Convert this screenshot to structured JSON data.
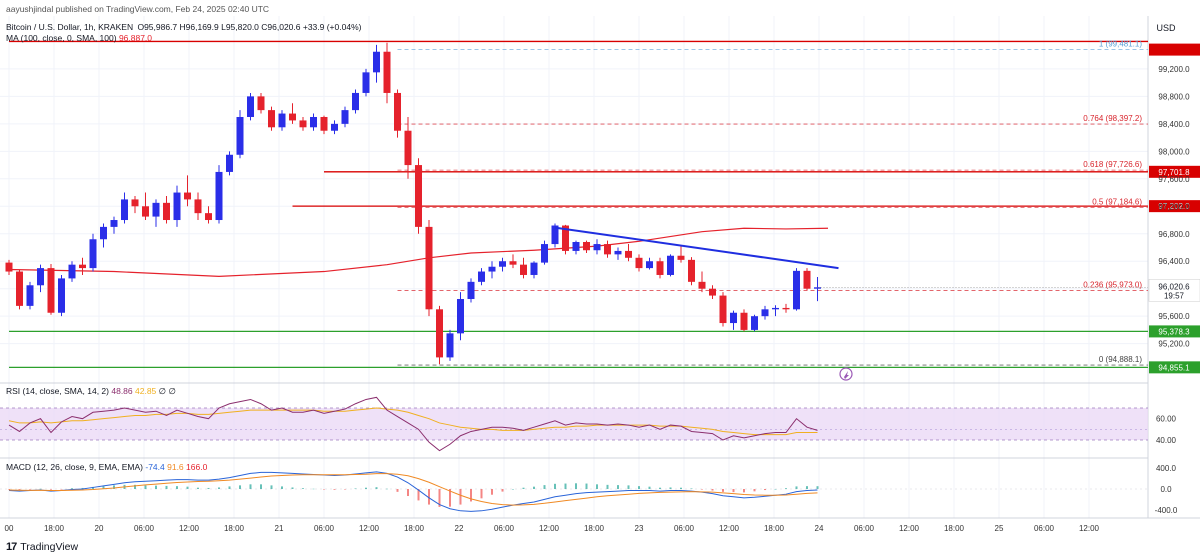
{
  "header": {
    "publisher_line": "aayushjindal published on TradingView.com, Feb 24, 2025 02:40 UTC",
    "symbol": "Bitcoin / U.S. Dollar, 1h, KRAKEN",
    "ohlc": "O95,986.7  H96,169.9  L95,820.0  C96,020.6  +33.9 (+0.04%)",
    "ma_label": "MA (100, close, 0, SMA, 100)",
    "ma_value": "96,887.0"
  },
  "currency": "USD",
  "footer": {
    "brand": "TradingView"
  },
  "colors": {
    "up": "#2a2ee8",
    "down": "#e5222c",
    "ma": "#e5222c",
    "trendline": "#1f2ee0",
    "support": "#2ca02c",
    "resistance": "#d80000",
    "rsi_band": "#e9d7f5",
    "rsi": "#8b2f6e",
    "rsi_ma": "#f0b020",
    "macd": "#2a64d8",
    "signal": "#f08a24"
  },
  "chart_data": [
    {
      "type": "candlestick",
      "title": "Bitcoin / U.S. Dollar, 1h, KRAKEN",
      "ylim": [
        94700,
        99650
      ],
      "y_ticks": [
        95200,
        95600,
        96000,
        96400,
        96800,
        97200,
        97600,
        98000,
        98400,
        98800,
        99200
      ],
      "y_tick_labels": [
        "95,200.0",
        "95,600.0",
        "96,000.0",
        "96,400.0",
        "96,800.0",
        "97,200.0",
        "97,600.0",
        "98,000.0",
        "98,400.0",
        "98,800.0",
        "99,200.0"
      ],
      "x_tick_labels": [
        "00",
        "18:00",
        "20",
        "06:00",
        "12:00",
        "18:00",
        "21",
        "06:00",
        "12:00",
        "18:00",
        "22",
        "06:00",
        "12:00",
        "18:00",
        "23",
        "06:00",
        "12:00",
        "18:00",
        "24",
        "06:00",
        "12:00",
        "18:00",
        "25",
        "06:00",
        "12:00"
      ],
      "candles": [
        [
          96380,
          96420,
          96200,
          96250
        ],
        [
          96250,
          96280,
          95700,
          95750
        ],
        [
          95750,
          96100,
          95700,
          96050
        ],
        [
          96050,
          96350,
          95950,
          96300
        ],
        [
          96300,
          96360,
          95620,
          95650
        ],
        [
          95650,
          96200,
          95600,
          96150
        ],
        [
          96150,
          96400,
          96100,
          96350
        ],
        [
          96350,
          96450,
          96200,
          96300
        ],
        [
          96300,
          96800,
          96250,
          96720
        ],
        [
          96720,
          96950,
          96600,
          96900
        ],
        [
          96900,
          97050,
          96800,
          97000
        ],
        [
          97000,
          97400,
          96950,
          97300
        ],
        [
          97300,
          97350,
          97100,
          97200
        ],
        [
          97200,
          97400,
          97000,
          97050
        ],
        [
          97050,
          97300,
          96900,
          97250
        ],
        [
          97250,
          97350,
          96950,
          97000
        ],
        [
          97000,
          97500,
          96900,
          97400
        ],
        [
          97400,
          97650,
          97200,
          97300
        ],
        [
          97300,
          97400,
          97000,
          97100
        ],
        [
          97100,
          97200,
          96950,
          97000
        ],
        [
          97000,
          97800,
          96950,
          97700
        ],
        [
          97700,
          98000,
          97650,
          97950
        ],
        [
          97950,
          98600,
          97900,
          98500
        ],
        [
          98500,
          98850,
          98450,
          98800
        ],
        [
          98800,
          98850,
          98550,
          98600
        ],
        [
          98600,
          98650,
          98300,
          98350
        ],
        [
          98350,
          98600,
          98300,
          98550
        ],
        [
          98550,
          98700,
          98400,
          98450
        ],
        [
          98450,
          98500,
          98300,
          98350
        ],
        [
          98350,
          98550,
          98300,
          98500
        ],
        [
          98500,
          98520,
          98250,
          98300
        ],
        [
          98300,
          98450,
          98250,
          98400
        ],
        [
          98400,
          98650,
          98350,
          98600
        ],
        [
          98600,
          98900,
          98550,
          98850
        ],
        [
          98850,
          99200,
          98800,
          99150
        ],
        [
          99150,
          99550,
          99000,
          99450
        ],
        [
          99450,
          99580,
          98700,
          98850
        ],
        [
          98850,
          98900,
          98200,
          98300
        ],
        [
          98300,
          98500,
          97600,
          97800
        ],
        [
          97800,
          97900,
          96800,
          96900
        ],
        [
          96900,
          97000,
          95600,
          95700
        ],
        [
          95700,
          95750,
          94900,
          95000
        ],
        [
          95000,
          95400,
          94950,
          95350
        ],
        [
          95350,
          95950,
          95250,
          95850
        ],
        [
          95850,
          96150,
          95800,
          96100
        ],
        [
          96100,
          96300,
          96050,
          96250
        ],
        [
          96250,
          96400,
          96150,
          96320
        ],
        [
          96320,
          96450,
          96250,
          96400
        ],
        [
          96400,
          96500,
          96300,
          96350
        ],
        [
          96350,
          96450,
          96150,
          96200
        ],
        [
          96200,
          96400,
          96150,
          96380
        ],
        [
          96380,
          96700,
          96350,
          96650
        ],
        [
          96650,
          96950,
          96600,
          96920
        ],
        [
          96920,
          96930,
          96500,
          96550
        ],
        [
          96550,
          96700,
          96500,
          96680
        ],
        [
          96680,
          96700,
          96520,
          96560
        ],
        [
          96560,
          96720,
          96500,
          96650
        ],
        [
          96650,
          96700,
          96450,
          96500
        ],
        [
          96500,
          96600,
          96420,
          96550
        ],
        [
          96550,
          96650,
          96400,
          96450
        ],
        [
          96450,
          96500,
          96250,
          96300
        ],
        [
          96300,
          96450,
          96280,
          96400
        ],
        [
          96400,
          96450,
          96150,
          96200
        ],
        [
          96200,
          96500,
          96180,
          96480
        ],
        [
          96480,
          96620,
          96380,
          96420
        ],
        [
          96420,
          96460,
          96050,
          96100
        ],
        [
          96100,
          96250,
          95950,
          96000
        ],
        [
          96000,
          96050,
          95850,
          95900
        ],
        [
          95900,
          95950,
          95450,
          95500
        ],
        [
          95500,
          95680,
          95400,
          95650
        ],
        [
          95650,
          95700,
          95380,
          95400
        ],
        [
          95400,
          95620,
          95380,
          95600
        ],
        [
          95600,
          95750,
          95550,
          95700
        ],
        [
          95700,
          95760,
          95600,
          95720
        ],
        [
          95720,
          95780,
          95650,
          95700
        ],
        [
          95700,
          96300,
          95680,
          96260
        ],
        [
          96260,
          96300,
          95980,
          96000
        ],
        [
          96000,
          96169.9,
          95820,
          96020.6
        ]
      ],
      "ma100": {
        "name": "MA (100, close, 0, SMA, 100)",
        "points": [
          [
            0,
            96280
          ],
          [
            10,
            96250
          ],
          [
            20,
            96180
          ],
          [
            30,
            96250
          ],
          [
            36,
            96350
          ],
          [
            40,
            96450
          ],
          [
            44,
            96520
          ],
          [
            50,
            96560
          ],
          [
            56,
            96620
          ],
          [
            60,
            96690
          ],
          [
            66,
            96830
          ],
          [
            70,
            96880
          ],
          [
            74,
            96870
          ],
          [
            78,
            96880
          ]
        ]
      },
      "trendline": [
        [
          52,
          96890
        ],
        [
          79,
          96300
        ]
      ],
      "horizontal_levels": [
        {
          "price": 99600,
          "label": "",
          "color": "#d80000",
          "from": 0
        },
        {
          "price": 97701.8,
          "label": "97,701.8",
          "color": "#d80000",
          "from": 30
        },
        {
          "price": 97202.0,
          "label": "97,202.0",
          "color": "#d80000",
          "from": 27
        },
        {
          "price": 95378.3,
          "label": "95,378.3",
          "color": "#2ca02c",
          "from": 0
        },
        {
          "price": 94855.1,
          "label": "94,855.1",
          "color": "#2ca02c",
          "from": 0
        }
      ],
      "current_price": {
        "value": "96,020.6",
        "countdown": "19:57"
      },
      "fibonacci": [
        {
          "ratio": "1",
          "label": "1 (99,481.1)",
          "price": 99481.1
        },
        {
          "ratio": "0.764",
          "label": "0.764 (98,397.2)",
          "price": 98397.2
        },
        {
          "ratio": "0.618",
          "label": "0.618 (97,726.6)",
          "price": 97726.6
        },
        {
          "ratio": "0.5",
          "label": "0.5 (97,184.6)",
          "price": 97184.6
        },
        {
          "ratio": "0.236",
          "label": "0.236 (95,973.0)",
          "price": 95973.0
        },
        {
          "ratio": "0",
          "label": "0 (94,888.1)",
          "price": 94888.1
        }
      ]
    },
    {
      "type": "line",
      "title": "RSI (14, close, SMA, 14, 2)",
      "legend_values": [
        "48.86",
        "42.85",
        "∅",
        "∅"
      ],
      "ylim": [
        25,
        85
      ],
      "band": [
        40,
        70
      ],
      "y_ticks": [
        40,
        60
      ],
      "y_tick_labels": [
        "40.00",
        "60.00"
      ],
      "rsi": [
        54,
        48,
        56,
        60,
        47,
        57,
        62,
        60,
        66,
        67,
        68,
        70,
        68,
        66,
        67,
        63,
        68,
        65,
        62,
        60,
        70,
        74,
        76,
        78,
        74,
        68,
        70,
        66,
        66,
        68,
        65,
        67,
        69,
        74,
        78,
        80,
        68,
        62,
        56,
        50,
        38,
        30,
        36,
        44,
        48,
        50,
        52,
        52,
        51,
        49,
        52,
        55,
        58,
        54,
        56,
        55,
        55,
        54,
        55,
        54,
        52,
        54,
        50,
        54,
        53,
        48,
        47,
        46,
        40,
        44,
        42,
        44,
        46,
        47,
        47,
        60,
        52,
        49
      ],
      "rsi_ma": [
        58,
        56,
        56,
        57,
        56,
        57,
        58,
        58,
        59,
        60,
        61,
        62,
        63,
        63,
        64,
        64,
        65,
        65,
        64,
        64,
        65,
        66,
        67,
        68,
        68,
        68,
        68,
        68,
        68,
        68,
        67,
        67,
        67,
        68,
        69,
        70,
        69,
        68,
        66,
        63,
        60,
        56,
        54,
        52,
        51,
        50,
        50,
        49,
        49,
        49,
        50,
        51,
        52,
        52,
        53,
        53,
        54,
        54,
        54,
        54,
        54,
        54,
        53,
        53,
        53,
        52,
        51,
        50,
        48,
        47,
        46,
        45,
        45,
        45,
        45,
        47,
        47,
        47
      ]
    },
    {
      "type": "histogram+line",
      "title": "MACD (12, 26, close, 9, EMA, EMA)",
      "legend_values": [
        "-74.4",
        "91.6",
        "166.0"
      ],
      "ylim": [
        -520,
        520
      ],
      "y_ticks": [
        400,
        0,
        -400
      ],
      "y_tick_labels": [
        "400.0",
        "0.0",
        "-400.0"
      ],
      "macd": [
        -30,
        -40,
        -30,
        -20,
        -40,
        -30,
        -10,
        0,
        30,
        60,
        90,
        120,
        140,
        150,
        160,
        170,
        180,
        180,
        170,
        170,
        190,
        220,
        260,
        300,
        320,
        320,
        310,
        300,
        290,
        280,
        270,
        260,
        270,
        290,
        310,
        330,
        300,
        230,
        120,
        -20,
        -170,
        -300,
        -380,
        -420,
        -430,
        -420,
        -390,
        -350,
        -310,
        -280,
        -250,
        -200,
        -150,
        -120,
        -90,
        -70,
        -60,
        -50,
        -40,
        -30,
        -30,
        -30,
        -40,
        -30,
        -30,
        -40,
        -60,
        -90,
        -130,
        -150,
        -170,
        -160,
        -140,
        -120,
        -100,
        -50,
        -30,
        -20
      ],
      "signal": [
        -20,
        -25,
        -27,
        -25,
        -28,
        -28,
        -25,
        -20,
        -10,
        5,
        20,
        40,
        60,
        80,
        95,
        110,
        125,
        135,
        145,
        150,
        160,
        170,
        190,
        210,
        230,
        250,
        260,
        270,
        275,
        275,
        275,
        275,
        275,
        280,
        285,
        295,
        295,
        285,
        255,
        200,
        130,
        45,
        -40,
        -120,
        -190,
        -240,
        -280,
        -300,
        -310,
        -305,
        -295,
        -275,
        -250,
        -225,
        -200,
        -175,
        -150,
        -130,
        -115,
        -100,
        -85,
        -75,
        -65,
        -60,
        -55,
        -50,
        -55,
        -60,
        -75,
        -90,
        -105,
        -115,
        -120,
        -120,
        -115,
        -100,
        -85,
        -74
      ]
    }
  ]
}
